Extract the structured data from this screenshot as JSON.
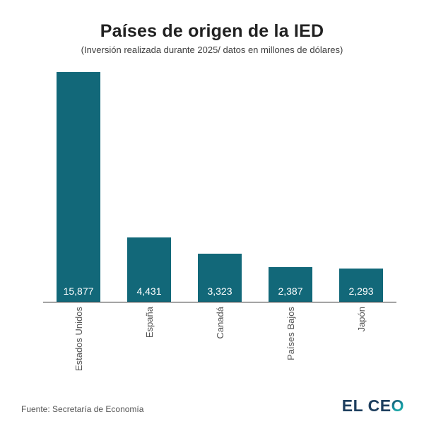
{
  "header": {
    "title": "Países de origen de la IED",
    "subtitle": "(Inversión realizada durante 2025/ datos en millones de dólares)"
  },
  "chart_data": {
    "type": "bar",
    "title": "Países de origen de la IED",
    "subtitle": "(Inversión realizada durante 2025/ datos en millones de dólares)",
    "categories": [
      "Estados Unidos",
      "España",
      "Canadá",
      "Países Bajos",
      "Japón"
    ],
    "values": [
      15877,
      4431,
      3323,
      2387,
      2293
    ],
    "value_labels": [
      "15,877",
      "4,431",
      "3,323",
      "2,387",
      "2,293"
    ],
    "xlabel": "",
    "ylabel": "",
    "ylim": [
      0,
      16000
    ],
    "grid": false,
    "legend": "none",
    "bar_color": "#126879",
    "value_label_color": "#ffffff",
    "tick_label_color": "#555555",
    "tick_label_rotation": 90
  },
  "footer": {
    "source": "Fuente: Secretaría de Economía",
    "logo_part1": "EL CE",
    "logo_part2": "O"
  },
  "colors": {
    "background": "#ffffff",
    "bar": "#126879",
    "axis": "#2b2b2b",
    "title": "#212121",
    "logo_navy": "#1d3e5e",
    "logo_teal": "#2bbfa4"
  }
}
